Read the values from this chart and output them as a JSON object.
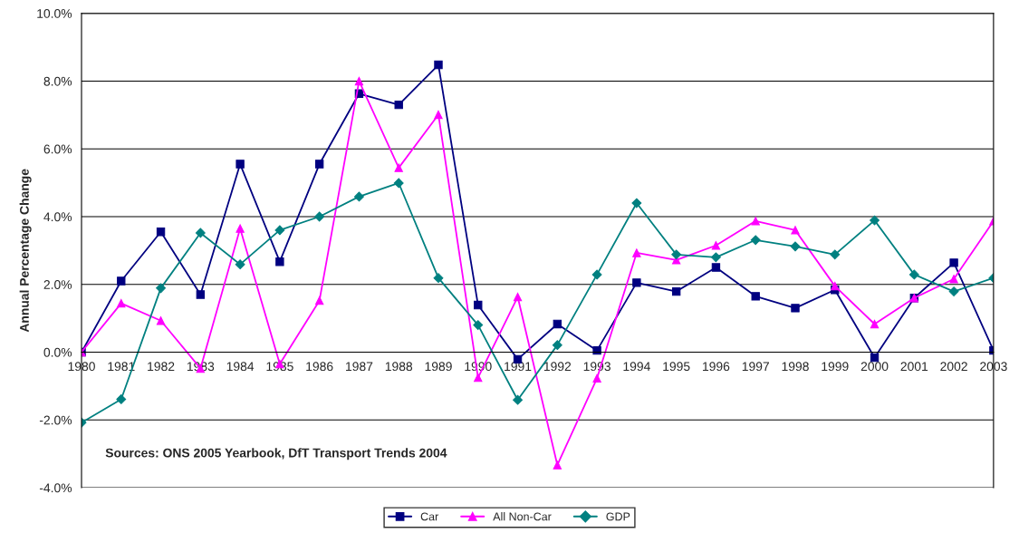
{
  "chart_data": {
    "type": "line",
    "ylabel": "Annual Percentage Change",
    "categories": [
      "1980",
      "1981",
      "1982",
      "1983",
      "1984",
      "1985",
      "1986",
      "1987",
      "1988",
      "1989",
      "1990",
      "1991",
      "1992",
      "1993",
      "1994",
      "1995",
      "1996",
      "1997",
      "1998",
      "1999",
      "2000",
      "2001",
      "2002",
      "2003"
    ],
    "series": [
      {
        "name": "Car",
        "color": "#000080",
        "marker": "square",
        "values": [
          0.0,
          2.1,
          3.55,
          1.7,
          5.55,
          2.67,
          5.55,
          7.63,
          7.3,
          8.48,
          1.39,
          -0.21,
          0.83,
          0.05,
          2.05,
          1.79,
          2.5,
          1.65,
          1.3,
          1.84,
          -0.16,
          1.6,
          2.64,
          0.05
        ]
      },
      {
        "name": "All Non-Car",
        "color": "#ff00ff",
        "marker": "triangle",
        "values": [
          0.0,
          1.44,
          0.93,
          -0.48,
          3.65,
          -0.35,
          1.52,
          8.0,
          5.44,
          7.01,
          -0.75,
          1.63,
          -3.33,
          -0.77,
          2.93,
          2.72,
          3.15,
          3.87,
          3.6,
          1.95,
          0.83,
          1.6,
          2.16,
          3.87
        ]
      },
      {
        "name": "GDP",
        "color": "#008080",
        "marker": "diamond",
        "values": [
          -2.08,
          -1.39,
          1.89,
          3.52,
          2.59,
          3.6,
          4.0,
          4.59,
          4.99,
          2.19,
          0.8,
          -1.41,
          0.21,
          2.29,
          4.4,
          2.88,
          2.8,
          3.31,
          3.12,
          2.88,
          3.89,
          2.29,
          1.79,
          2.19
        ]
      }
    ],
    "ylim": [
      -4,
      10
    ],
    "yticks": [
      {
        "value": -4,
        "label": "-4.0%"
      },
      {
        "value": -2,
        "label": "-2.0%"
      },
      {
        "value": 0,
        "label": "0.0%"
      },
      {
        "value": 2,
        "label": "2.0%"
      },
      {
        "value": 4,
        "label": "4.0%"
      },
      {
        "value": 6,
        "label": "6.0%"
      },
      {
        "value": 8,
        "label": "8.0%"
      },
      {
        "value": 10,
        "label": "10.0%"
      }
    ],
    "grid": "y",
    "legend": "bottom",
    "line_style": "solid",
    "annotations": [
      "Sources: ONS 2005 Yearbook, DfT Transport Trends 2004"
    ]
  }
}
